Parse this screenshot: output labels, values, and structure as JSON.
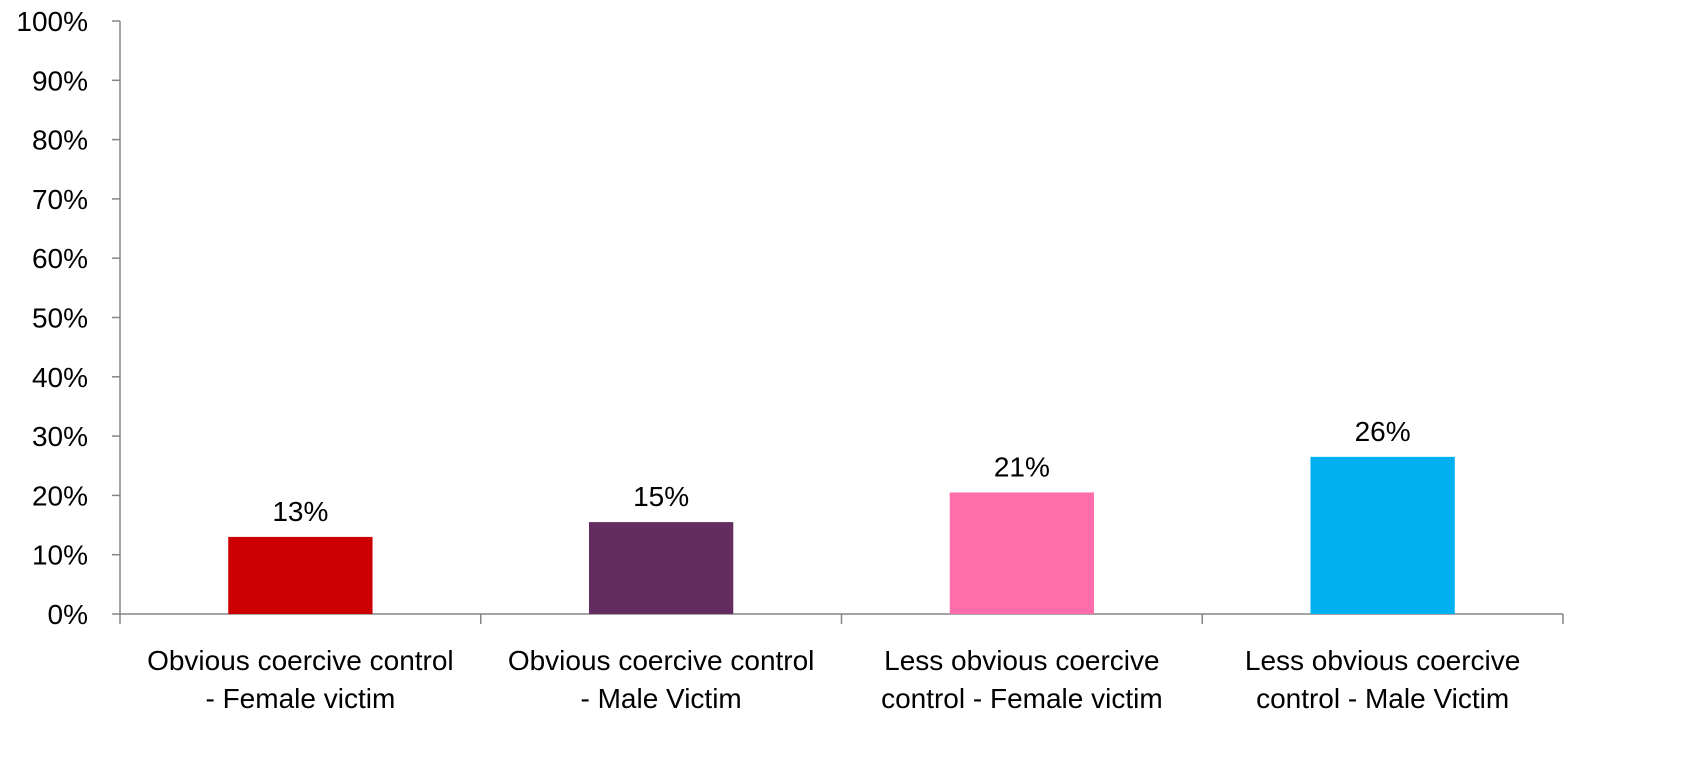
{
  "chart_data": {
    "type": "bar",
    "title": "",
    "xlabel": "",
    "ylabel": "",
    "ylim": [
      0,
      100
    ],
    "yticks": [
      "0%",
      "10%",
      "20%",
      "30%",
      "40%",
      "50%",
      "60%",
      "70%",
      "80%",
      "90%",
      "100%"
    ],
    "grid": false,
    "legend": "none",
    "categories": [
      [
        "Obvious coercive control",
        "- Female victim"
      ],
      [
        "Obvious coercive control",
        "- Male Victim"
      ],
      [
        "Less obvious coercive",
        "control  - Female victim"
      ],
      [
        "Less obvious coercive",
        "control  - Male Victim"
      ]
    ],
    "values": [
      13,
      15.5,
      20.5,
      26.5
    ],
    "data_labels": [
      "13%",
      "15%",
      "21%",
      "26%"
    ],
    "colors": [
      "#CC0000",
      "#632D5F",
      "#FF6EAB",
      "#00B0F0"
    ]
  }
}
